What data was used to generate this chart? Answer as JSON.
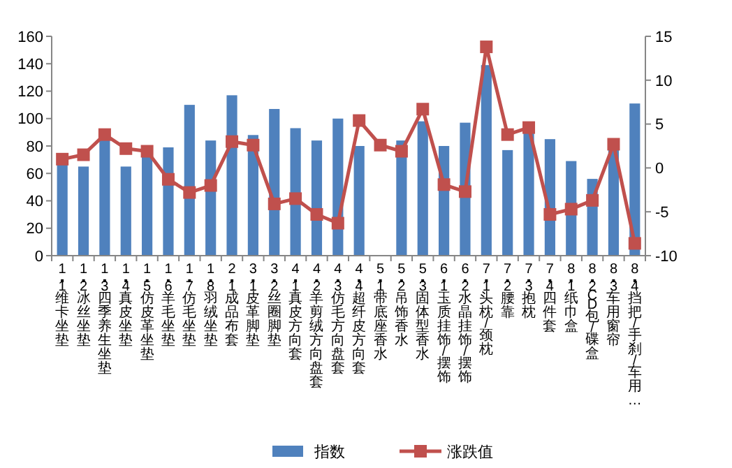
{
  "chart_data": {
    "type": "bar",
    "categories": [
      "1.1维卡坐垫",
      "1.2冰丝坐垫",
      "1.3四季养生坐垫",
      "1.4真皮坐垫",
      "1.5仿皮革坐垫",
      "1.6羊毛坐垫",
      "1.7仿毛坐垫",
      "1.8羽绒坐垫",
      "2.1成品布套",
      "3.1皮革脚垫",
      "3.2丝圈脚垫",
      "4.1真皮方向套",
      "4.2羊剪绒方向盘套",
      "4.3仿毛方向盘套",
      "4.4超纤皮方向套",
      "5.1带底座香水",
      "5.2吊饰香水",
      "5.3固体型香水",
      "6.1玉质挂饰/摆饰",
      "6.2水晶挂饰/摆饰",
      "7.1头枕/颈枕",
      "7.2腰靠",
      "7.3抱枕",
      "7.4四件套",
      "8.1纸巾盒",
      "8.2CD包/碟盒",
      "8.3车用窗帘",
      "8.4挡把/手刹/车用…"
    ],
    "series": [
      {
        "name": "指数",
        "color": "#4f81bd",
        "values": [
          68,
          65,
          85,
          65,
          73,
          79,
          110,
          84,
          117,
          88,
          107,
          93,
          84,
          100,
          80,
          null,
          84,
          98,
          80,
          97,
          139,
          77,
          91,
          85,
          69,
          56,
          78,
          111
        ]
      },
      {
        "name": "涨跌值",
        "type": "line",
        "axis": "y2",
        "color": "#c0504d",
        "marker": "square",
        "values": [
          1.0,
          1.5,
          3.8,
          2.2,
          1.9,
          -1.3,
          -2.8,
          -2.0,
          3.0,
          2.6,
          -4.1,
          -3.5,
          -5.3,
          -6.3,
          5.4,
          2.6,
          1.9,
          6.7,
          -1.9,
          -2.7,
          13.8,
          3.8,
          4.6,
          -5.3,
          -4.7,
          -3.7,
          2.7,
          -8.6
        ]
      }
    ],
    "ylim": [
      0,
      160
    ],
    "yticks": [
      0,
      20,
      40,
      60,
      80,
      100,
      120,
      140,
      160
    ],
    "y2lim": [
      -10,
      15
    ],
    "y2ticks": [
      -10,
      -5,
      0,
      5,
      10,
      15
    ],
    "grid": false,
    "legend": "bottom"
  }
}
